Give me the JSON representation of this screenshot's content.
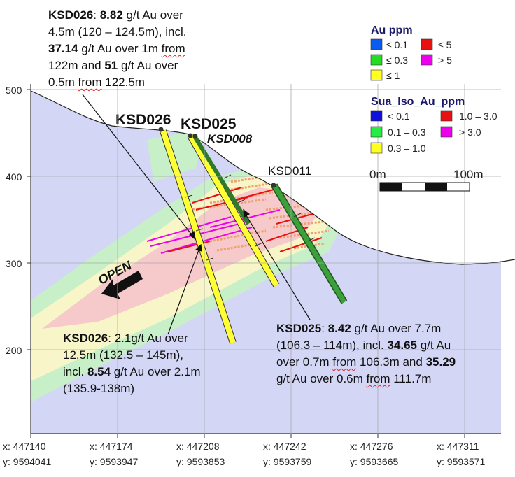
{
  "axis": {
    "y_ticks": [
      "500",
      "400",
      "300",
      "200"
    ],
    "x_ticks": [
      {
        "x": "x: 447140",
        "y": "y: 9594041"
      },
      {
        "x": "x: 447174",
        "y": "y: 9593947"
      },
      {
        "x": "x: 447208",
        "y": "y: 9593853"
      },
      {
        "x": "x: 447242",
        "y": "y: 9593759"
      },
      {
        "x": "x: 447276",
        "y": "y: 9593665"
      },
      {
        "x": "x: 447311",
        "y": "y: 9593571"
      }
    ]
  },
  "holes": {
    "ksd026": "KSD026",
    "ksd025": "KSD025",
    "ksd008": "KSD008",
    "ksd011": "KSD011"
  },
  "open_label": "OPEN",
  "legend": {
    "au_title": "Au ppm",
    "au_items": [
      {
        "label": "≤ 0.1",
        "color": "#0a5cf0"
      },
      {
        "label": "≤ 5",
        "color": "#e81010"
      },
      {
        "label": "≤ 0.3",
        "color": "#22dd22"
      },
      {
        "label": "> 5",
        "color": "#ee00ee"
      },
      {
        "label": "≤ 1",
        "color": "#ffff22"
      }
    ],
    "sua_title": "Sua_Iso_Au_ppm",
    "sua_items": [
      {
        "label": "< 0.1",
        "color": "#1010dd"
      },
      {
        "label": "1.0 – 3.0",
        "color": "#e81010"
      },
      {
        "label": "0.1 – 0.3",
        "color": "#22ee44"
      },
      {
        "label": "> 3.0",
        "color": "#ee00ee"
      },
      {
        "label": "0.3 – 1.0",
        "color": "#ffff22"
      }
    ],
    "scale_start": "0m",
    "scale_end": "100m"
  },
  "annotations": {
    "top": {
      "l1_bold": "KSD026",
      "l1_a": ": ",
      "l1_b": "8.82",
      "l1_c": " g/t Au over",
      "l2": "4.5m (120 – 124.5m), incl.",
      "l3_b": "37.14",
      "l3_a": " g/t Au over 1m ",
      "l3_sq": "from",
      "l4_a": "122m and ",
      "l4_b": "51",
      "l4_c": " g/t Au over",
      "l5_a": "0.5m ",
      "l5_sq": "from",
      "l5_c": " 122.5m"
    },
    "bottom_left": {
      "l1_b": "KSD026",
      "l1_a": ": 2.1g/t  Au over",
      "l2": "12.5m (132.5 – 145m),",
      "l3_a": "incl.  ",
      "l3_b": "8.54",
      "l3_c": " g/t Au over 2.1m",
      "l4": "(135.9-138m)"
    },
    "bottom_right": {
      "l1_b": "KSD025",
      "l1_a": ": ",
      "l1_v": "8.42",
      "l1_c": " g/t Au over 7.7m",
      "l2_a": "(106.3 – 114m), incl. ",
      "l2_b": "34.65",
      "l2_c": " g/t Au",
      "l3_a": "over 0.7m ",
      "l3_sq": "from",
      "l3_c": " 106.3m and ",
      "l3_b": "35.29",
      "l4_a": "g/t Au over 0.6m ",
      "l4_sq": "from",
      "l4_c": " 111.7m"
    }
  },
  "colors": {
    "background_zone": "#d4d6f6",
    "low_green": "#c8f0c8",
    "low_yellow": "#f8f6c8",
    "high_pink": "#f6caca"
  }
}
